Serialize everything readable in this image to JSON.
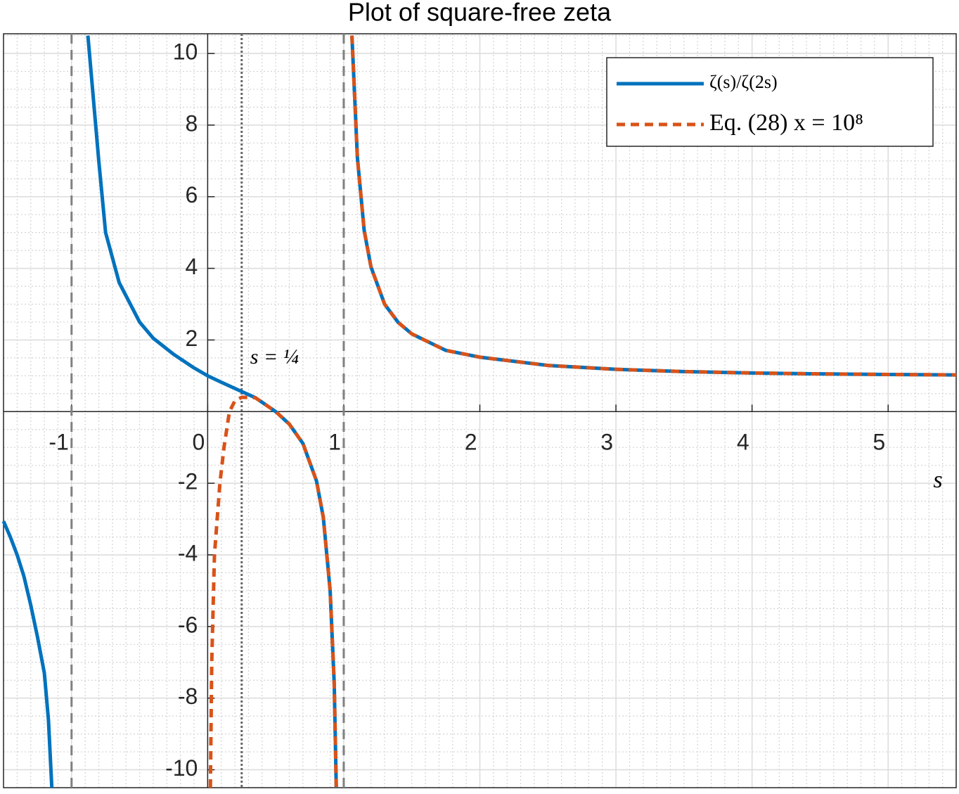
{
  "chart_data": {
    "type": "line",
    "title": "Plot of square-free zeta",
    "x_label": "s",
    "xlim": [
      -1.5,
      5.5
    ],
    "ylim": [
      -10.5,
      10.55
    ],
    "xticks": [
      -1,
      0,
      1,
      2,
      3,
      4,
      5
    ],
    "yticks": [
      -10,
      -8,
      -6,
      -4,
      -2,
      2,
      4,
      6,
      8,
      10
    ],
    "grid": true,
    "minor_grid": {
      "x": 0.1,
      "y": 0.5
    },
    "legend": "upper right",
    "series": [
      {
        "name": "ζ(s)/ζ(2s)",
        "color": "#0072bd",
        "style": "solid",
        "x": [
          -1.5,
          -1.45,
          -1.4,
          -1.35,
          -1.3,
          -1.25,
          -1.2,
          -1.17,
          -1.145,
          -1.0,
          -0.88,
          -0.8,
          -0.75,
          -0.65,
          -0.5,
          -0.4,
          -0.25,
          -0.1,
          0,
          0.1,
          0.25,
          0.35,
          0.5,
          0.6,
          0.7,
          0.8,
          0.85,
          0.9,
          0.93,
          0.945,
          1.0,
          1.06,
          1.1,
          1.15,
          1.2,
          1.3,
          1.4,
          1.5,
          1.75,
          2,
          2.5,
          3,
          3.5,
          4,
          4.5,
          5,
          5.5
        ],
        "values": [
          -3.06,
          -3.5,
          -4.0,
          -4.6,
          -5.4,
          -6.3,
          -7.3,
          -8.6,
          -10.5,
          null,
          10.5,
          7.0,
          5.0,
          3.6,
          2.5,
          2.05,
          1.6,
          1.22,
          1.0,
          0.82,
          0.56,
          0.39,
          0,
          -0.35,
          -0.89,
          -1.94,
          -2.96,
          -5.0,
          -7.6,
          -10.5,
          null,
          10.5,
          7.1,
          5.06,
          4.04,
          3.0,
          2.49,
          2.17,
          1.71,
          1.52,
          1.29,
          1.18,
          1.118,
          1.078,
          1.053,
          1.036,
          1.025
        ]
      },
      {
        "name": "Eq. (28) x = 10⁸",
        "color": "#d95319",
        "style": "dashed",
        "x": [
          0.02,
          0.03,
          0.05,
          0.09,
          0.12,
          0.16,
          0.2,
          0.25,
          0.35,
          0.5,
          0.6,
          0.7,
          0.8,
          0.85,
          0.9,
          0.93,
          0.945,
          1.0,
          1.06,
          1.1,
          1.15,
          1.2,
          1.3,
          1.4,
          1.5,
          1.75,
          2,
          2.5,
          3,
          3.5,
          4,
          4.5,
          5,
          5.5
        ],
        "values": [
          -10.5,
          -7.0,
          -4.0,
          -2.0,
          -1.0,
          0,
          0.3,
          0.4,
          0.39,
          0,
          -0.35,
          -0.89,
          -1.94,
          -2.96,
          -5.0,
          -7.6,
          -10.5,
          null,
          10.5,
          7.1,
          5.06,
          4.04,
          3.0,
          2.49,
          2.17,
          1.71,
          1.52,
          1.29,
          1.18,
          1.118,
          1.078,
          1.053,
          1.036,
          1.025
        ]
      }
    ],
    "vlines": [
      {
        "x": -1,
        "style": "dashed"
      },
      {
        "x": 0.25,
        "style": "dotted",
        "label": "s = ¼"
      },
      {
        "x": 1,
        "style": "dashed"
      }
    ]
  }
}
